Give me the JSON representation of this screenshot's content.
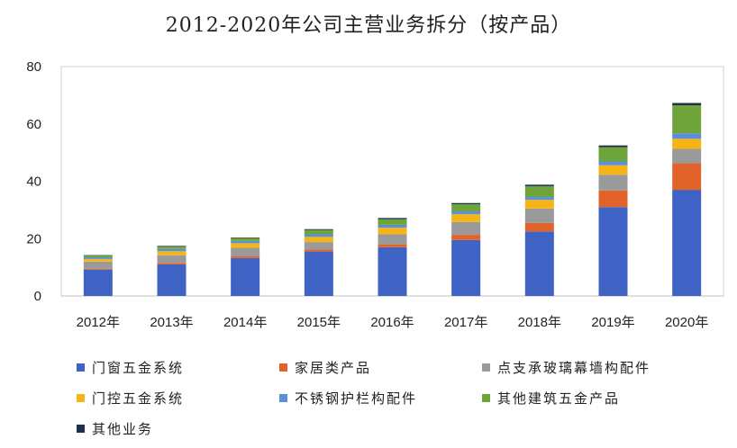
{
  "chart_data": {
    "type": "bar",
    "stacked": true,
    "title": "2012-2020年公司主营业务拆分（按产品）",
    "xlabel": "",
    "ylabel": "",
    "ylim": [
      0,
      80
    ],
    "yticks": [
      0,
      20,
      40,
      60,
      80
    ],
    "grid": false,
    "legend_position": "bottom",
    "categories": [
      "2012年",
      "2013年",
      "2014年",
      "2015年",
      "2016年",
      "2017年",
      "2018年",
      "2019年",
      "2020年"
    ],
    "series": [
      {
        "name": "门窗五金系统",
        "color": "#3F63C4",
        "values": [
          9.2,
          11.0,
          13.2,
          15.5,
          17.0,
          19.5,
          22.5,
          31.0,
          37.0
        ]
      },
      {
        "name": "家居类产品",
        "color": "#E2632A",
        "values": [
          0.3,
          0.5,
          0.6,
          0.7,
          1.0,
          1.8,
          3.0,
          5.8,
          9.3
        ]
      },
      {
        "name": "点支承玻璃幕墙构配件",
        "color": "#9A9A9A",
        "values": [
          2.5,
          2.7,
          3.0,
          2.6,
          3.5,
          4.5,
          5.0,
          5.5,
          5.0
        ]
      },
      {
        "name": "门控五金系统",
        "color": "#F7B515",
        "values": [
          0.9,
          1.4,
          1.6,
          1.8,
          2.3,
          2.7,
          3.0,
          3.3,
          3.5
        ]
      },
      {
        "name": "不锈钢护栏构配件",
        "color": "#5B8FDB",
        "values": [
          0.6,
          0.8,
          0.8,
          0.9,
          1.0,
          1.0,
          1.0,
          1.3,
          1.9
        ]
      },
      {
        "name": "其他建筑五金产品",
        "color": "#6FA43A",
        "values": [
          0.7,
          0.9,
          1.0,
          1.5,
          2.0,
          2.5,
          3.8,
          5.0,
          9.8
        ]
      },
      {
        "name": "其他业务",
        "color": "#1F2F4F",
        "values": [
          0.1,
          0.2,
          0.2,
          0.3,
          0.4,
          0.4,
          0.5,
          0.6,
          0.8
        ]
      }
    ]
  }
}
